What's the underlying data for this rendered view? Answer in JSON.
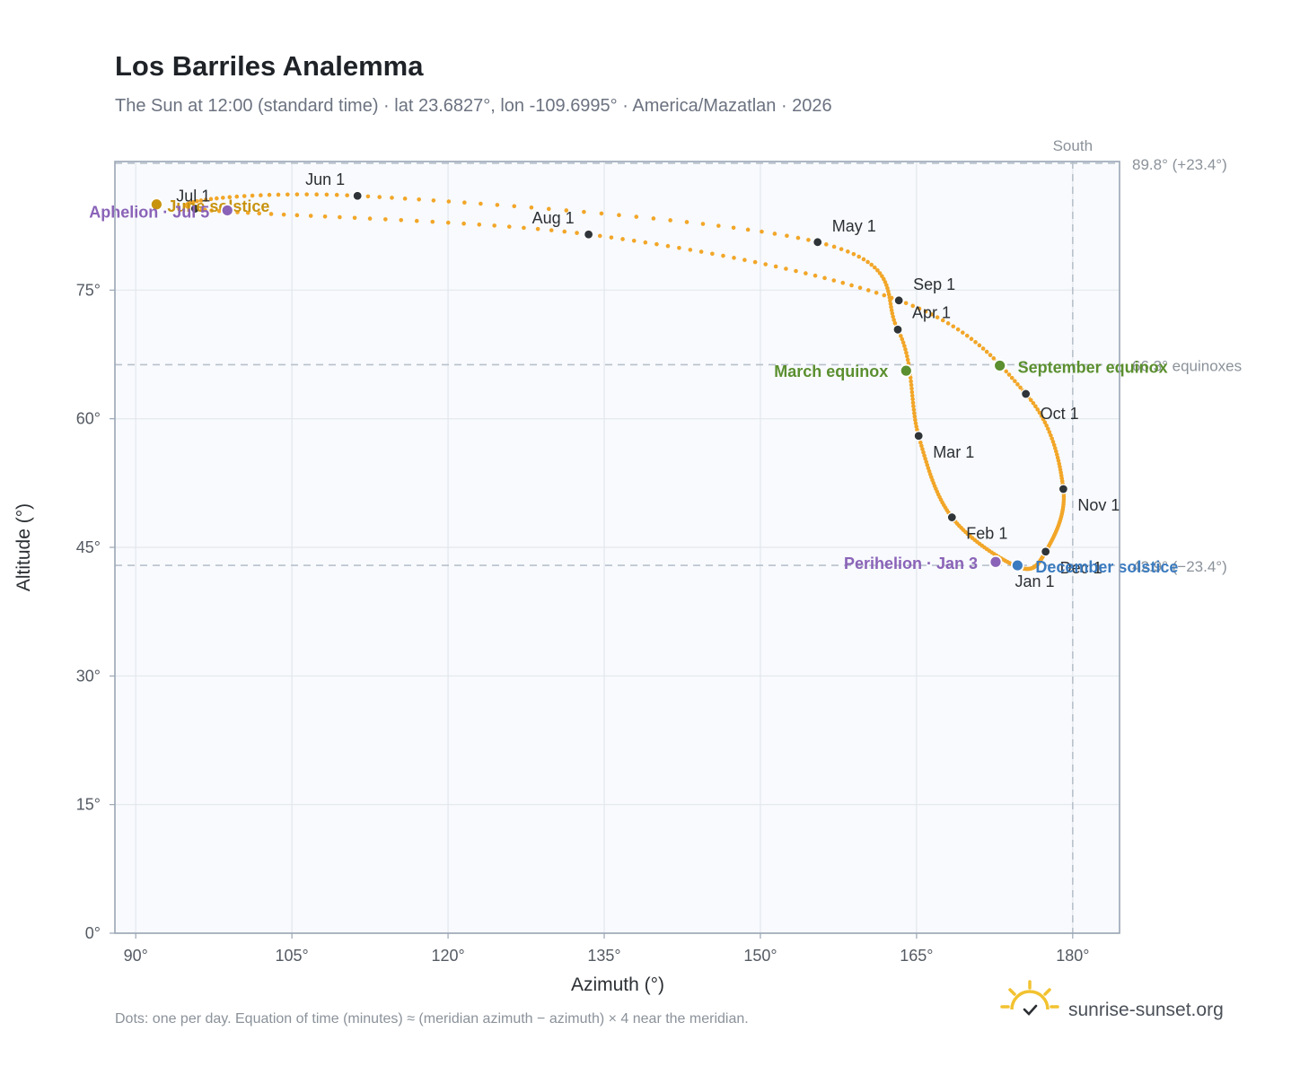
{
  "title": "Los Barriles Analemma",
  "subtitle": "The Sun at 12:00 (standard time) · lat 23.6827°, lon -109.6995° · America/Mazatlan · 2026",
  "footer_note": "Dots: one per day. Equation of time (minutes) ≈ (meridian azimuth − azimuth) × 4 near the meridian.",
  "brand": "sunrise-sunset.org",
  "colors": {
    "path": "#f2a628",
    "month_marker": "#2f3439",
    "equinox": "#5b8f2f",
    "june_solstice": "#c8930f",
    "december_solstice": "#3b7bbf",
    "apsis": "#8a63b8",
    "grid": "#e3e7ec",
    "plot_bg": "#f8fafd",
    "frame": "#9aa6b5",
    "ref_line": "#b8c1cc"
  },
  "icons": {
    "brand": "sun-icon"
  },
  "chart_data": {
    "type": "scatter",
    "title": "Los Barriles Analemma",
    "xlabel": "Azimuth (°)",
    "ylabel": "Altitude (°)",
    "xlim": [
      88,
      184.5
    ],
    "ylim": [
      0,
      90
    ],
    "xticks": [
      90,
      105,
      120,
      135,
      150,
      165,
      180
    ],
    "xtick_labels": [
      "90°",
      "105°",
      "120°",
      "135°",
      "150°",
      "165°",
      "180°"
    ],
    "yticks": [
      0,
      15,
      30,
      45,
      60,
      75
    ],
    "ytick_labels": [
      "0°",
      "15°",
      "30°",
      "45°",
      "60°",
      "75°"
    ],
    "grid": true,
    "series_note": "one dot per day",
    "month_markers": [
      {
        "label": "Jan 1",
        "az": 174.8,
        "alt": 42.7
      },
      {
        "label": "Feb 1",
        "az": 168.4,
        "alt": 48.5
      },
      {
        "label": "Mar 1",
        "az": 165.2,
        "alt": 58.0
      },
      {
        "label": "Apr 1",
        "az": 163.2,
        "alt": 70.4
      },
      {
        "label": "May 1",
        "az": 155.5,
        "alt": 80.6
      },
      {
        "label": "Jun 1",
        "az": 111.3,
        "alt": 86.0
      },
      {
        "label": "Jul 1",
        "az": 95.7,
        "alt": 84.5
      },
      {
        "label": "Aug 1",
        "az": 133.5,
        "alt": 81.5
      },
      {
        "label": "Sep 1",
        "az": 163.3,
        "alt": 73.8
      },
      {
        "label": "Oct 1",
        "az": 175.5,
        "alt": 62.9
      },
      {
        "label": "Nov 1",
        "az": 179.1,
        "alt": 51.8
      },
      {
        "label": "Dec 1",
        "az": 177.4,
        "alt": 44.5
      }
    ],
    "events": [
      {
        "label": "June solstice",
        "az": 92.0,
        "alt": 85.0,
        "color_key": "june_solstice"
      },
      {
        "label": "Aphelion · Jul 5",
        "az": 98.8,
        "alt": 84.3,
        "color_key": "apsis"
      },
      {
        "label": "March equinox",
        "az": 164.0,
        "alt": 65.6,
        "color_key": "equinox"
      },
      {
        "label": "September equinox",
        "az": 173.0,
        "alt": 66.2,
        "color_key": "equinox"
      },
      {
        "label": "Perihelion · Jan 3",
        "az": 172.6,
        "alt": 43.3,
        "color_key": "apsis"
      },
      {
        "label": "December solstice",
        "az": 174.7,
        "alt": 42.9,
        "color_key": "december_solstice"
      }
    ],
    "reference_lines": {
      "horizontal": [
        {
          "alt": 89.8,
          "label": "89.8° (+23.4°)"
        },
        {
          "alt": 66.3,
          "label": "66.3° equinoxes"
        },
        {
          "alt": 42.9,
          "label": "42.9° (−23.4°)"
        }
      ],
      "vertical": [
        {
          "az": 180,
          "label": "South"
        }
      ]
    }
  }
}
